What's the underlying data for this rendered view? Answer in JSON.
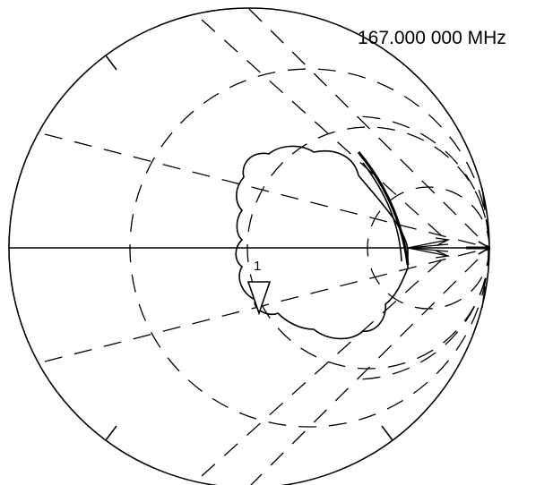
{
  "frequency_readout": "167.000 000 MHz",
  "marker": {
    "label": "1"
  },
  "colors": {
    "ink": "#000000",
    "background": "#ffffff"
  }
}
